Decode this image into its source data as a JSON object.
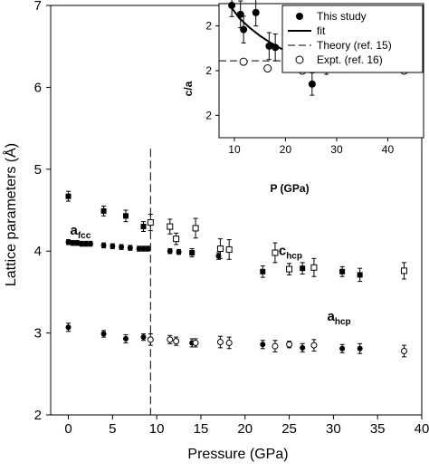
{
  "chart_data": [
    {
      "type": "scatter",
      "xlabel": "Pressure (GPa)",
      "ylabel": "Lattice parameters (Å)",
      "xlim": [
        -2,
        40
      ],
      "ylim": [
        2,
        7
      ],
      "xticks": [
        "0",
        "5",
        "10",
        "15",
        "20",
        "25",
        "30",
        "35",
        "40"
      ],
      "yticks": [
        "2",
        "3",
        "4",
        "5",
        "6",
        "7"
      ],
      "vline_x": 9.3,
      "annotations": [
        {
          "main": "a",
          "sub": "fcc",
          "x": 0.2,
          "y": 4.2
        },
        {
          "main": "c",
          "sub": "hcp",
          "x": 23.8,
          "y": 3.95
        },
        {
          "main": "a",
          "sub": "hcp",
          "x": 29.3,
          "y": 3.15
        }
      ],
      "series": [
        {
          "marker": "filled-circle",
          "points": [
            [
              0,
              4.11
            ],
            [
              0.5,
              4.1
            ],
            [
              1,
              4.1
            ],
            [
              1.5,
              4.09
            ],
            [
              2,
              4.09
            ],
            [
              2.5,
              4.09
            ],
            [
              4,
              4.07
            ],
            [
              5,
              4.06
            ],
            [
              6,
              4.05
            ],
            [
              7,
              4.04
            ],
            [
              8,
              4.03
            ],
            [
              8.5,
              4.03
            ],
            [
              9,
              4.03
            ],
            [
              11.5,
              4.0
            ],
            [
              12.5,
              3.99
            ],
            [
              17,
              3.94
            ]
          ],
          "err": [
            0.03,
            0.03,
            0.03,
            0.03,
            0.03,
            0.03,
            0.03,
            0.03,
            0.03,
            0.03,
            0.03,
            0.03,
            0.03,
            0.03,
            0.03,
            0.04
          ]
        },
        {
          "marker": "filled-square",
          "points": [
            [
              0,
              4.67
            ],
            [
              4,
              4.49
            ],
            [
              6.5,
              4.43
            ],
            [
              8.5,
              4.3
            ],
            [
              14,
              3.98
            ],
            [
              22,
              3.75
            ],
            [
              26.5,
              3.79
            ],
            [
              31,
              3.75
            ],
            [
              33,
              3.71
            ]
          ],
          "err": [
            0.06,
            0.06,
            0.07,
            0.06,
            0.05,
            0.07,
            0.07,
            0.06,
            0.08
          ]
        },
        {
          "marker": "open-square",
          "points": [
            [
              9.3,
              4.35
            ],
            [
              11.5,
              4.3
            ],
            [
              12.2,
              4.15
            ],
            [
              14.4,
              4.28
            ],
            [
              17.2,
              4.03
            ],
            [
              18.2,
              4.02
            ],
            [
              23.4,
              3.98
            ],
            [
              25,
              3.78
            ],
            [
              27.8,
              3.8
            ],
            [
              38,
              3.76
            ]
          ],
          "err": [
            0.1,
            0.09,
            0.07,
            0.12,
            0.12,
            0.12,
            0.12,
            0.07,
            0.11,
            0.1
          ]
        },
        {
          "marker": "filled-circle",
          "points": [
            [
              0,
              3.07
            ],
            [
              4,
              2.99
            ],
            [
              6.5,
              2.93
            ],
            [
              8.5,
              2.95
            ],
            [
              14,
              2.88
            ],
            [
              22,
              2.86
            ],
            [
              26.5,
              2.82
            ],
            [
              31,
              2.81
            ],
            [
              33,
              2.81
            ]
          ],
          "err": [
            0.05,
            0.04,
            0.05,
            0.04,
            0.05,
            0.05,
            0.05,
            0.05,
            0.06
          ]
        },
        {
          "marker": "open-circle",
          "points": [
            [
              9.3,
              2.92
            ],
            [
              11.5,
              2.92
            ],
            [
              12.2,
              2.9
            ],
            [
              14.4,
              2.88
            ],
            [
              17.2,
              2.89
            ],
            [
              18.2,
              2.88
            ],
            [
              23.4,
              2.84
            ],
            [
              25,
              2.86
            ],
            [
              27.8,
              2.85
            ],
            [
              38,
              2.78
            ]
          ],
          "err": [
            0.07,
            0.05,
            0.05,
            0.05,
            0.07,
            0.07,
            0.07,
            0.04,
            0.07,
            0.07
          ]
        }
      ]
    },
    {
      "type": "scatter",
      "xlabel": "P (GPa)",
      "ylabel": "c/a",
      "xlim": [
        7,
        47
      ],
      "ylim": [
        0,
        3
      ],
      "xticks": [
        "10",
        "20",
        "30",
        "40"
      ],
      "yticks": [
        "2",
        "2",
        "2"
      ],
      "legend": {
        "placement": "top-right",
        "entries": [
          {
            "label": "This study",
            "style": "filled-circle"
          },
          {
            "label": "fit",
            "style": "solid-line"
          },
          {
            "label": "Theory (ref. 15)",
            "style": "dashed-line"
          },
          {
            "label": "Expt. (ref. 16)",
            "style": "open-circle"
          }
        ]
      },
      "series": [
        {
          "name": "This study",
          "marker": "filled-circle",
          "points": [
            [
              9.5,
              2.96
            ],
            [
              11.2,
              2.76
            ],
            [
              11.8,
              2.42
            ],
            [
              14.2,
              2.8
            ],
            [
              16.8,
              2.05
            ],
            [
              18,
              2.02
            ],
            [
              23.1,
              2.17
            ],
            [
              25.2,
              1.2
            ],
            [
              28,
              1.72
            ],
            [
              37.7,
              1.9
            ]
          ],
          "err": [
            0.25,
            0.3,
            0.3,
            0.3,
            0.3,
            0.3,
            0.35,
            0.25,
            0.3,
            0.05
          ]
        },
        {
          "name": "fit",
          "style": "solid-line",
          "points": [
            [
              9.5,
              2.9
            ],
            [
              11,
              2.67
            ],
            [
              13,
              2.46
            ],
            [
              15,
              2.28
            ],
            [
              17,
              2.13
            ],
            [
              19,
              2.0
            ],
            [
              21,
              1.9
            ],
            [
              23,
              1.82
            ],
            [
              25,
              1.76
            ],
            [
              27,
              1.72
            ],
            [
              28.5,
              1.7
            ]
          ]
        },
        {
          "name": "Theory (ref. 15)",
          "style": "dashed-line",
          "points": [
            [
              7,
              1.72
            ],
            [
              47,
              1.72
            ]
          ]
        },
        {
          "name": "Expt. (ref. 16)",
          "marker": "open-circle",
          "points": [
            [
              11.8,
              1.7
            ],
            [
              16.5,
              1.55
            ],
            [
              23.3,
              1.5
            ],
            [
              27.3,
              1.63
            ],
            [
              35.2,
              1.68
            ],
            [
              38.5,
              1.7
            ],
            [
              41,
              1.68
            ],
            [
              43.2,
              1.5
            ],
            [
              45.2,
              1.65
            ]
          ]
        }
      ]
    }
  ]
}
